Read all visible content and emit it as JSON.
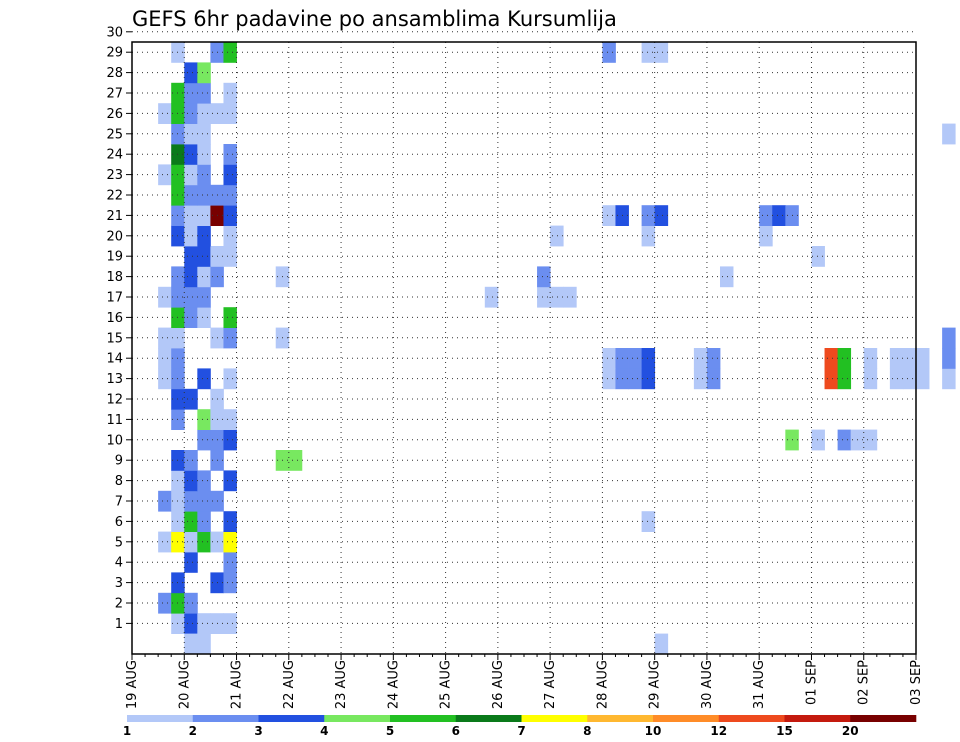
{
  "chart_data": {
    "type": "heatmap",
    "title": "GEFS 6hr padavine po ansamblima Kursumlija",
    "xlabel": "",
    "ylabel": "",
    "x_ticks": [
      "19 AUG",
      "20 AUG",
      "21 AUG",
      "22 AUG",
      "23 AUG",
      "24 AUG",
      "25 AUG",
      "26 AUG",
      "27 AUG",
      "28 AUG",
      "29 AUG",
      "30 AUG",
      "31 AUG",
      "01 SEP",
      "02 SEP",
      "03 SEP"
    ],
    "y_ticks": [
      "1",
      "2",
      "3",
      "4",
      "5",
      "6",
      "7",
      "8",
      "9",
      "10",
      "11",
      "12",
      "13",
      "14",
      "15",
      "16",
      "17",
      "18",
      "19",
      "20",
      "21",
      "22",
      "23",
      "24",
      "25",
      "26",
      "27",
      "28",
      "29",
      "30"
    ],
    "grid": true,
    "colorbar": {
      "labels": [
        "1",
        "2",
        "3",
        "4",
        "5",
        "6",
        "7",
        "8",
        "10",
        "12",
        "15",
        "20"
      ],
      "colors": [
        "#b3c8f8",
        "#6b8ef0",
        "#2250e0",
        "#78e860",
        "#22c022",
        "#0a7a1a",
        "#ffff00",
        "#ffb830",
        "#ff8c28",
        "#ee4a1e",
        "#c41a0e",
        "#780000"
      ]
    },
    "cell_value_legend": "cells list [x_step, member, class]; x_step = 6h steps after 19 AUG 00Z; class 1..12 matches colorbar bins",
    "cells": [
      [
        3,
        1,
        1
      ],
      [
        4,
        1,
        3
      ],
      [
        5,
        1,
        1
      ],
      [
        6,
        1,
        1
      ],
      [
        7,
        1,
        1
      ],
      [
        2,
        2,
        2
      ],
      [
        3,
        2,
        5
      ],
      [
        4,
        2,
        2
      ],
      [
        3,
        3,
        3
      ],
      [
        6,
        3,
        3
      ],
      [
        7,
        3,
        2
      ],
      [
        4,
        4,
        3
      ],
      [
        7,
        4,
        2
      ],
      [
        2,
        5,
        1
      ],
      [
        3,
        5,
        7
      ],
      [
        4,
        5,
        1
      ],
      [
        5,
        5,
        5
      ],
      [
        6,
        5,
        1
      ],
      [
        7,
        5,
        7
      ],
      [
        3,
        6,
        1
      ],
      [
        4,
        6,
        5
      ],
      [
        5,
        6,
        2
      ],
      [
        7,
        6,
        3
      ],
      [
        39,
        6,
        1
      ],
      [
        2,
        7,
        2
      ],
      [
        3,
        7,
        1
      ],
      [
        4,
        7,
        2
      ],
      [
        5,
        7,
        2
      ],
      [
        6,
        7,
        2
      ],
      [
        3,
        8,
        1
      ],
      [
        4,
        8,
        3
      ],
      [
        5,
        8,
        2
      ],
      [
        7,
        8,
        3
      ],
      [
        3,
        9,
        3
      ],
      [
        4,
        9,
        2
      ],
      [
        6,
        9,
        2
      ],
      [
        11,
        9,
        4
      ],
      [
        12,
        9,
        4
      ],
      [
        5,
        10,
        2
      ],
      [
        6,
        10,
        2
      ],
      [
        7,
        10,
        3
      ],
      [
        50,
        10,
        4
      ],
      [
        52,
        10,
        1
      ],
      [
        54,
        10,
        2
      ],
      [
        55,
        10,
        1
      ],
      [
        56,
        10,
        1
      ],
      [
        3,
        11,
        2
      ],
      [
        5,
        11,
        4
      ],
      [
        6,
        11,
        1
      ],
      [
        7,
        11,
        1
      ],
      [
        3,
        12,
        3
      ],
      [
        4,
        12,
        3
      ],
      [
        6,
        12,
        1
      ],
      [
        2,
        13,
        1
      ],
      [
        3,
        13,
        2
      ],
      [
        5,
        13,
        3
      ],
      [
        7,
        13,
        1
      ],
      [
        36,
        13,
        1
      ],
      [
        37,
        13,
        2
      ],
      [
        38,
        13,
        2
      ],
      [
        39,
        13,
        3
      ],
      [
        43,
        13,
        1
      ],
      [
        44,
        13,
        2
      ],
      [
        53,
        13,
        10
      ],
      [
        54,
        13,
        5
      ],
      [
        56,
        13,
        1
      ],
      [
        58,
        13,
        1
      ],
      [
        59,
        13,
        1
      ],
      [
        60,
        13,
        1
      ],
      [
        62,
        13,
        1
      ],
      [
        2,
        14,
        1
      ],
      [
        3,
        14,
        2
      ],
      [
        36,
        14,
        1
      ],
      [
        37,
        14,
        2
      ],
      [
        38,
        14,
        2
      ],
      [
        39,
        14,
        3
      ],
      [
        43,
        14,
        1
      ],
      [
        44,
        14,
        2
      ],
      [
        53,
        14,
        10
      ],
      [
        54,
        14,
        5
      ],
      [
        56,
        14,
        1
      ],
      [
        58,
        14,
        1
      ],
      [
        59,
        14,
        1
      ],
      [
        60,
        14,
        1
      ],
      [
        62,
        14,
        2
      ],
      [
        2,
        15,
        1
      ],
      [
        3,
        15,
        1
      ],
      [
        6,
        15,
        1
      ],
      [
        7,
        15,
        2
      ],
      [
        11,
        15,
        1
      ],
      [
        62,
        15,
        2
      ],
      [
        3,
        16,
        5
      ],
      [
        4,
        16,
        2
      ],
      [
        5,
        16,
        1
      ],
      [
        7,
        16,
        5
      ],
      [
        2,
        17,
        1
      ],
      [
        3,
        17,
        2
      ],
      [
        4,
        17,
        2
      ],
      [
        5,
        17,
        2
      ],
      [
        27,
        17,
        1
      ],
      [
        31,
        17,
        1
      ],
      [
        32,
        17,
        1
      ],
      [
        33,
        17,
        1
      ],
      [
        3,
        18,
        2
      ],
      [
        4,
        18,
        3
      ],
      [
        5,
        18,
        1
      ],
      [
        6,
        18,
        2
      ],
      [
        11,
        18,
        1
      ],
      [
        31,
        18,
        2
      ],
      [
        45,
        18,
        1
      ],
      [
        4,
        19,
        3
      ],
      [
        5,
        19,
        3
      ],
      [
        6,
        19,
        1
      ],
      [
        7,
        19,
        1
      ],
      [
        52,
        19,
        1
      ],
      [
        3,
        20,
        3
      ],
      [
        4,
        20,
        1
      ],
      [
        5,
        20,
        3
      ],
      [
        7,
        20,
        1
      ],
      [
        32,
        20,
        1
      ],
      [
        39,
        20,
        1
      ],
      [
        48,
        20,
        1
      ],
      [
        3,
        21,
        2
      ],
      [
        4,
        21,
        1
      ],
      [
        5,
        21,
        1
      ],
      [
        6,
        21,
        12
      ],
      [
        7,
        21,
        3
      ],
      [
        36,
        21,
        1
      ],
      [
        37,
        21,
        3
      ],
      [
        39,
        21,
        2
      ],
      [
        40,
        21,
        3
      ],
      [
        48,
        21,
        2
      ],
      [
        49,
        21,
        3
      ],
      [
        50,
        21,
        2
      ],
      [
        3,
        22,
        5
      ],
      [
        4,
        22,
        2
      ],
      [
        5,
        22,
        2
      ],
      [
        6,
        22,
        2
      ],
      [
        7,
        22,
        2
      ],
      [
        2,
        23,
        1
      ],
      [
        3,
        23,
        5
      ],
      [
        4,
        23,
        1
      ],
      [
        5,
        23,
        2
      ],
      [
        7,
        23,
        3
      ],
      [
        3,
        24,
        6
      ],
      [
        4,
        24,
        3
      ],
      [
        5,
        24,
        1
      ],
      [
        7,
        24,
        2
      ],
      [
        3,
        25,
        2
      ],
      [
        4,
        25,
        1
      ],
      [
        5,
        25,
        1
      ],
      [
        62,
        25,
        1
      ],
      [
        2,
        26,
        1
      ],
      [
        3,
        26,
        5
      ],
      [
        4,
        26,
        2
      ],
      [
        5,
        26,
        1
      ],
      [
        6,
        26,
        1
      ],
      [
        7,
        26,
        1
      ],
      [
        3,
        27,
        5
      ],
      [
        4,
        27,
        2
      ],
      [
        5,
        27,
        2
      ],
      [
        7,
        27,
        1
      ],
      [
        4,
        28,
        3
      ],
      [
        5,
        28,
        4
      ],
      [
        3,
        29,
        1
      ],
      [
        6,
        29,
        2
      ],
      [
        7,
        29,
        5
      ],
      [
        36,
        29,
        2
      ],
      [
        39,
        29,
        1
      ],
      [
        40,
        29,
        1
      ],
      [
        4,
        30,
        2
      ],
      [
        5,
        30,
        1
      ],
      [
        7,
        30,
        1
      ],
      [
        12,
        30,
        1
      ],
      [
        34,
        30,
        2
      ],
      [
        4,
        0,
        1
      ],
      [
        5,
        0,
        1
      ],
      [
        40,
        0,
        1
      ]
    ]
  }
}
